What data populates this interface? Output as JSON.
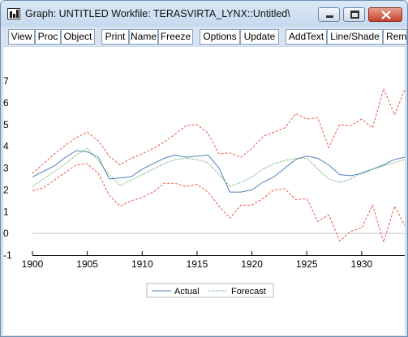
{
  "window": {
    "title": "Graph: UNTITLED    Workfile: TERASVIRTA_LYNX::Untitled\\"
  },
  "toolbar": {
    "buttons": [
      "View",
      "Proc",
      "Object",
      "Print",
      "Name",
      "Freeze",
      "Options",
      "Update",
      "AddText",
      "Line/Shade",
      "Rem"
    ]
  },
  "chart_data": {
    "type": "line",
    "title": "",
    "xlabel": "",
    "ylabel": "",
    "xlim": [
      1900,
      1934
    ],
    "ylim": [
      -1,
      7
    ],
    "xticks": [
      1900,
      1905,
      1910,
      1915,
      1920,
      1925,
      1930
    ],
    "yticks": [
      -1,
      0,
      1,
      2,
      3,
      4,
      5,
      6,
      7
    ],
    "grid": false,
    "zero_line": true,
    "legend_position": "bottom-center",
    "x": [
      1900,
      1901,
      1902,
      1903,
      1904,
      1905,
      1906,
      1907,
      1908,
      1909,
      1910,
      1911,
      1912,
      1913,
      1914,
      1915,
      1916,
      1917,
      1918,
      1919,
      1920,
      1921,
      1922,
      1923,
      1924,
      1925,
      1926,
      1927,
      1928,
      1929,
      1930,
      1931,
      1932,
      1933,
      1934
    ],
    "series": [
      {
        "name": "Actual",
        "color": "#4f81bd",
        "style": "solid",
        "values": [
          2.6,
          2.85,
          3.1,
          3.5,
          3.8,
          3.75,
          3.5,
          2.5,
          2.55,
          2.6,
          2.95,
          3.2,
          3.45,
          3.6,
          3.5,
          3.55,
          3.6,
          3.0,
          1.9,
          1.9,
          2.0,
          2.35,
          2.6,
          3.0,
          3.4,
          3.55,
          3.45,
          3.15,
          2.7,
          2.65,
          2.75,
          2.95,
          3.15,
          3.4,
          3.5
        ]
      },
      {
        "name": "Forecast",
        "color": "#5aa55a",
        "style": "dotted",
        "values": [
          2.15,
          2.5,
          2.85,
          3.2,
          3.6,
          3.9,
          3.35,
          2.7,
          2.2,
          2.45,
          2.7,
          2.95,
          3.2,
          3.4,
          3.45,
          3.4,
          3.25,
          2.7,
          2.15,
          2.35,
          2.6,
          2.95,
          3.2,
          3.35,
          3.45,
          3.45,
          2.95,
          2.5,
          2.35,
          2.5,
          2.8,
          2.95,
          3.1,
          3.25,
          3.4
        ]
      },
      {
        "name": "",
        "color": "#e8574f",
        "style": "dashed",
        "legend": false,
        "values": [
          2.75,
          3.2,
          3.65,
          4.05,
          4.4,
          4.65,
          4.25,
          3.55,
          3.15,
          3.45,
          3.65,
          3.9,
          4.2,
          4.55,
          4.95,
          5.0,
          4.6,
          3.65,
          3.7,
          3.5,
          3.9,
          4.45,
          4.65,
          4.85,
          5.5,
          5.25,
          5.3,
          3.95,
          5.0,
          4.95,
          5.25,
          4.85,
          6.65,
          5.45,
          6.7
        ]
      },
      {
        "name": "",
        "color": "#e8574f",
        "style": "dashed",
        "legend": false,
        "values": [
          1.95,
          2.1,
          2.45,
          2.8,
          3.15,
          3.2,
          2.75,
          1.75,
          1.25,
          1.5,
          1.65,
          1.9,
          2.3,
          2.3,
          2.15,
          2.25,
          1.9,
          1.25,
          0.7,
          1.3,
          1.3,
          1.6,
          2.0,
          2.05,
          1.55,
          1.6,
          0.55,
          0.85,
          -0.35,
          0.1,
          0.25,
          1.3,
          -0.4,
          1.25,
          0.3
        ]
      }
    ]
  }
}
